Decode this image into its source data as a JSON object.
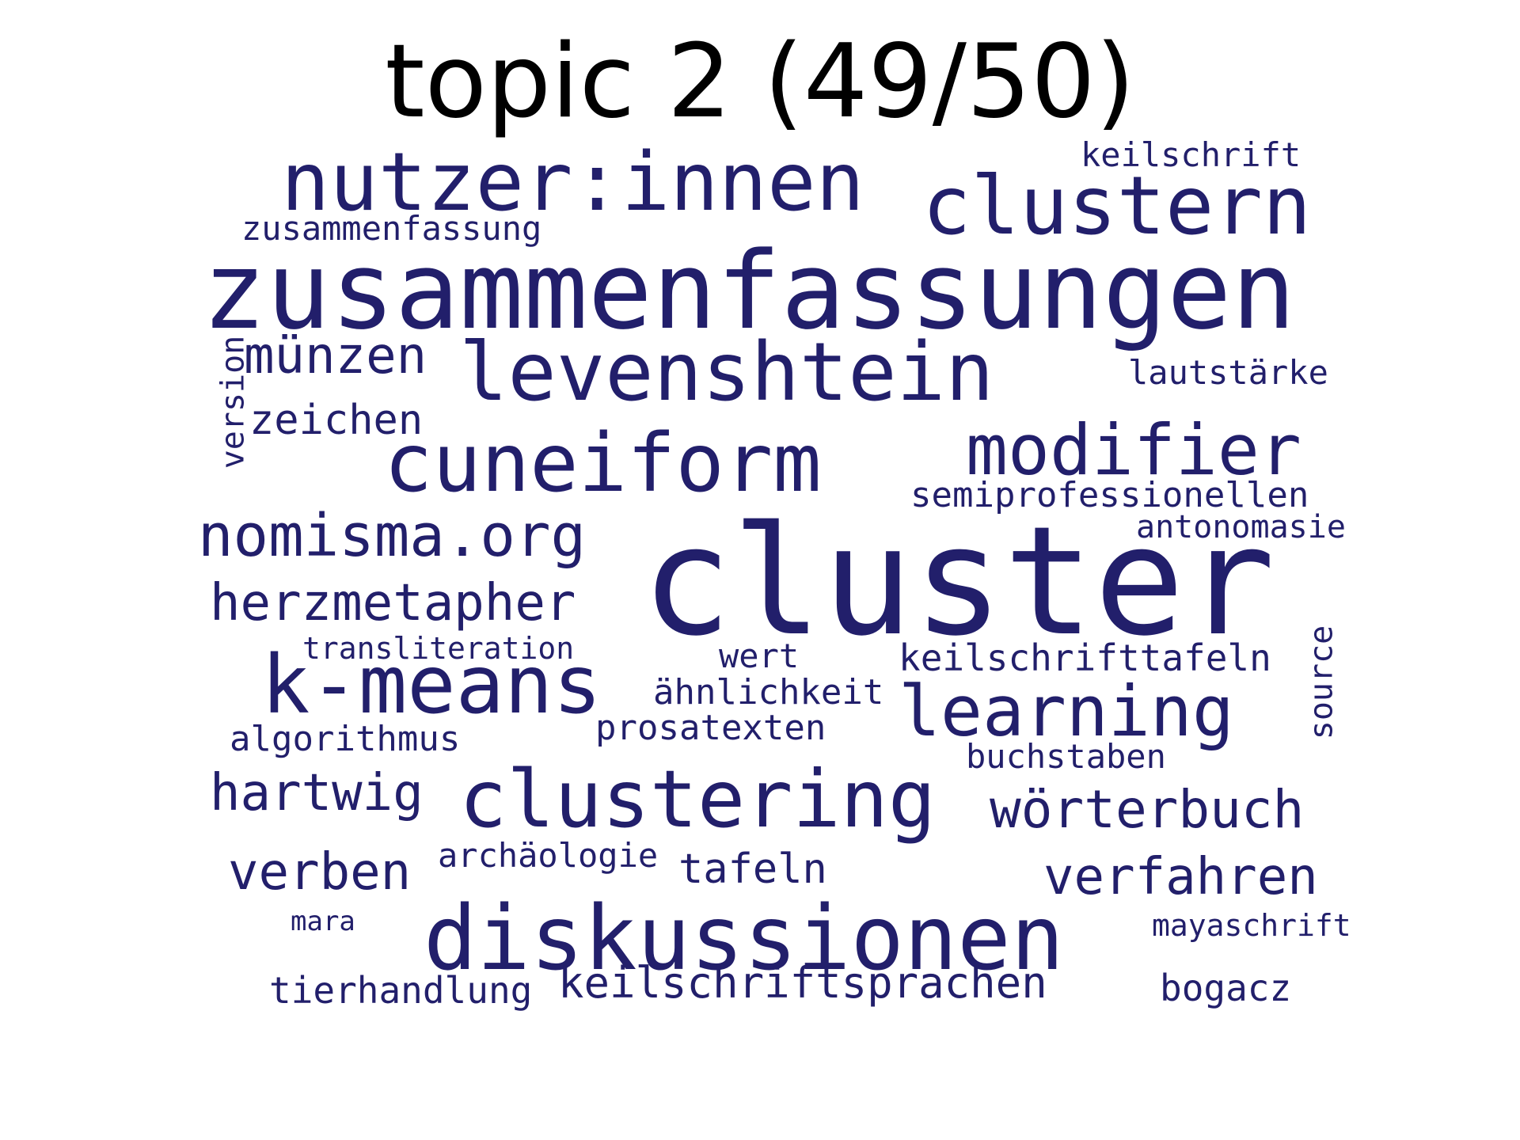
{
  "title": "topic 2 (49/50)",
  "word_color": "#221f6b",
  "words": [
    {
      "text": "cluster"
    },
    {
      "text": "zusammenfassungen"
    },
    {
      "text": "nutzer:innen"
    },
    {
      "text": "clustern"
    },
    {
      "text": "levenshtein"
    },
    {
      "text": "cuneiform"
    },
    {
      "text": "modifier"
    },
    {
      "text": "diskussionen"
    },
    {
      "text": "clustering"
    },
    {
      "text": "k-means"
    },
    {
      "text": "learning"
    },
    {
      "text": "nomisma.org"
    },
    {
      "text": "herzmetapher"
    },
    {
      "text": "münzen"
    },
    {
      "text": "wörterbuch"
    },
    {
      "text": "hartwig"
    },
    {
      "text": "verfahren"
    },
    {
      "text": "verben"
    },
    {
      "text": "keilschriftsprachen"
    },
    {
      "text": "zeichen"
    },
    {
      "text": "keilschrift"
    },
    {
      "text": "zusammenfassung"
    },
    {
      "text": "lautstärke"
    },
    {
      "text": "semiprofessionellen"
    },
    {
      "text": "antonomasie"
    },
    {
      "text": "version"
    },
    {
      "text": "transliteration"
    },
    {
      "text": "wert"
    },
    {
      "text": "keilschrifttafeln"
    },
    {
      "text": "ähnlichkeit"
    },
    {
      "text": "source"
    },
    {
      "text": "prosatexten"
    },
    {
      "text": "algorithmus"
    },
    {
      "text": "buchstaben"
    },
    {
      "text": "archäologie"
    },
    {
      "text": "tafeln"
    },
    {
      "text": "mara"
    },
    {
      "text": "mayaschrift"
    },
    {
      "text": "tierhandlung"
    },
    {
      "text": "bogacz"
    }
  ]
}
